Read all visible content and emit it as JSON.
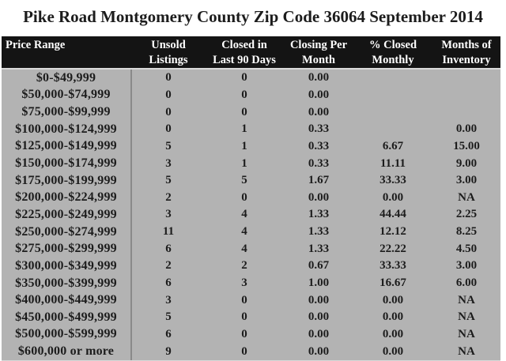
{
  "title": "Pike Road Montgomery County Zip Code 36064 September 2014",
  "chart_data": {
    "type": "table",
    "title": "Pike Road Montgomery County Zip Code 36064 September 2014",
    "columns": [
      "Price Range",
      "Unsold\nListings",
      "Closed in\nLast 90 Days",
      "Closing Per\nMonth",
      "% Closed\nMonthly",
      "Months of\nInventory"
    ],
    "rows": [
      [
        "$0-$49,999",
        "0",
        "0",
        "0.00",
        "",
        ""
      ],
      [
        "$50,000-$74,999",
        "0",
        "0",
        "0.00",
        "",
        ""
      ],
      [
        "$75,000-$99,999",
        "0",
        "0",
        "0.00",
        "",
        ""
      ],
      [
        "$100,000-$124,999",
        "0",
        "1",
        "0.33",
        "",
        "0.00"
      ],
      [
        "$125,000-$149,999",
        "5",
        "1",
        "0.33",
        "6.67",
        "15.00"
      ],
      [
        "$150,000-$174,999",
        "3",
        "1",
        "0.33",
        "11.11",
        "9.00"
      ],
      [
        "$175,000-$199,999",
        "5",
        "5",
        "1.67",
        "33.33",
        "3.00"
      ],
      [
        "$200,000-$224,999",
        "2",
        "0",
        "0.00",
        "0.00",
        "NA"
      ],
      [
        "$225,000-$249,999",
        "3",
        "4",
        "1.33",
        "44.44",
        "2.25"
      ],
      [
        "$250,000-$274,999",
        "11",
        "4",
        "1.33",
        "12.12",
        "8.25"
      ],
      [
        "$275,000-$299,999",
        "6",
        "4",
        "1.33",
        "22.22",
        "4.50"
      ],
      [
        "$300,000-$349,999",
        "2",
        "2",
        "0.67",
        "33.33",
        "3.00"
      ],
      [
        "$350,000-$399,999",
        "6",
        "3",
        "1.00",
        "16.67",
        "6.00"
      ],
      [
        "$400,000-$449,999",
        "3",
        "0",
        "0.00",
        "0.00",
        "NA"
      ],
      [
        "$450,000-$499,999",
        "5",
        "0",
        "0.00",
        "0.00",
        "NA"
      ],
      [
        "$500,000-$599,999",
        "6",
        "0",
        "0.00",
        "0.00",
        "NA"
      ],
      [
        "$600,000 or more",
        "9",
        "0",
        "0.00",
        "0.00",
        "NA"
      ]
    ]
  },
  "colors": {
    "header_bg": "#141414",
    "header_text": "#ffffff",
    "body_bg": "#b3b3b3",
    "divider": "#8a8a8a",
    "separator": "#d9d9d9",
    "text": "#1c1c1c",
    "page_bg": "#ffffff"
  }
}
